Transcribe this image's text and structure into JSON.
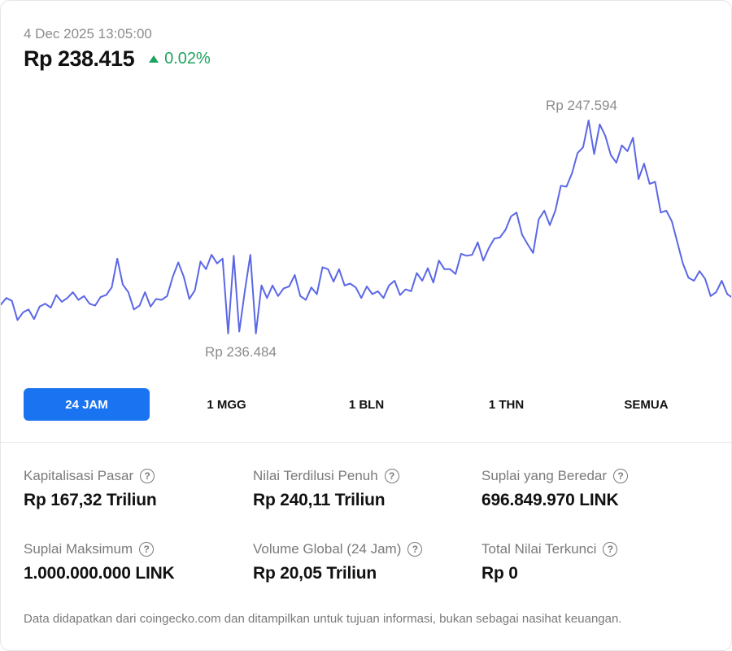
{
  "header": {
    "timestamp": "4 Dec 2025 13:05:00",
    "price": "Rp 238.415",
    "change": "0.02%",
    "change_color": "#1fa25f"
  },
  "chart_data": {
    "type": "line",
    "line_color": "#5b67e6",
    "max_label": "Rp 247.594",
    "min_label": "Rp 236.484",
    "max_value": 247594,
    "min_value": 236484,
    "values": [
      237950,
      238300,
      238150,
      237150,
      237550,
      237700,
      237200,
      237850,
      238000,
      237800,
      238450,
      238100,
      238300,
      238600,
      238200,
      238400,
      238000,
      237900,
      238350,
      238450,
      238850,
      240350,
      239000,
      238600,
      237700,
      237900,
      238600,
      237850,
      238250,
      238200,
      238400,
      239400,
      240150,
      239400,
      238250,
      238700,
      240200,
      239800,
      240550,
      240100,
      240350,
      236450,
      240500,
      236550,
      238650,
      240550,
      236450,
      238950,
      238300,
      238950,
      238400,
      238800,
      238900,
      239500,
      238400,
      238200,
      238850,
      238500,
      239900,
      239800,
      239150,
      239800,
      238950,
      239050,
      238850,
      238300,
      238900,
      238500,
      238650,
      238300,
      238950,
      239200,
      238450,
      238750,
      238650,
      239600,
      239200,
      239850,
      239100,
      240250,
      239800,
      239800,
      239550,
      240600,
      240500,
      240550,
      241200,
      240250,
      240900,
      241400,
      241450,
      241850,
      242550,
      242750,
      241600,
      241100,
      240650,
      242400,
      242850,
      242100,
      242850,
      244150,
      244100,
      244800,
      245850,
      246150,
      247550,
      245800,
      247350,
      246750,
      245750,
      245350,
      246250,
      245950,
      246650,
      244500,
      245300,
      244250,
      244350,
      242750,
      242850,
      242300,
      241200,
      240100,
      239350,
      239200,
      239700,
      239300,
      238400,
      238600,
      239200,
      238500,
      238300
    ]
  },
  "tabs": [
    {
      "label": "24 JAM",
      "active": true
    },
    {
      "label": "1 MGG",
      "active": false
    },
    {
      "label": "1 BLN",
      "active": false
    },
    {
      "label": "1 THN",
      "active": false
    },
    {
      "label": "SEMUA",
      "active": false
    }
  ],
  "stats": [
    {
      "label": "Kapitalisasi Pasar",
      "value": "Rp 167,32 Triliun"
    },
    {
      "label": "Nilai Terdilusi Penuh",
      "value": "Rp 240,11 Triliun"
    },
    {
      "label": "Suplai yang Beredar",
      "value": "696.849.970 LINK"
    },
    {
      "label": "Suplai Maksimum",
      "value": "1.000.000.000 LINK"
    },
    {
      "label": "Volume Global (24 Jam)",
      "value": "Rp 20,05 Triliun"
    },
    {
      "label": "Total Nilai Terkunci",
      "value": "Rp 0"
    }
  ],
  "help_icon": "question-circle-icon",
  "footer": "Data didapatkan dari coingecko.com dan ditampilkan untuk tujuan informasi, bukan sebagai nasihat keuangan."
}
